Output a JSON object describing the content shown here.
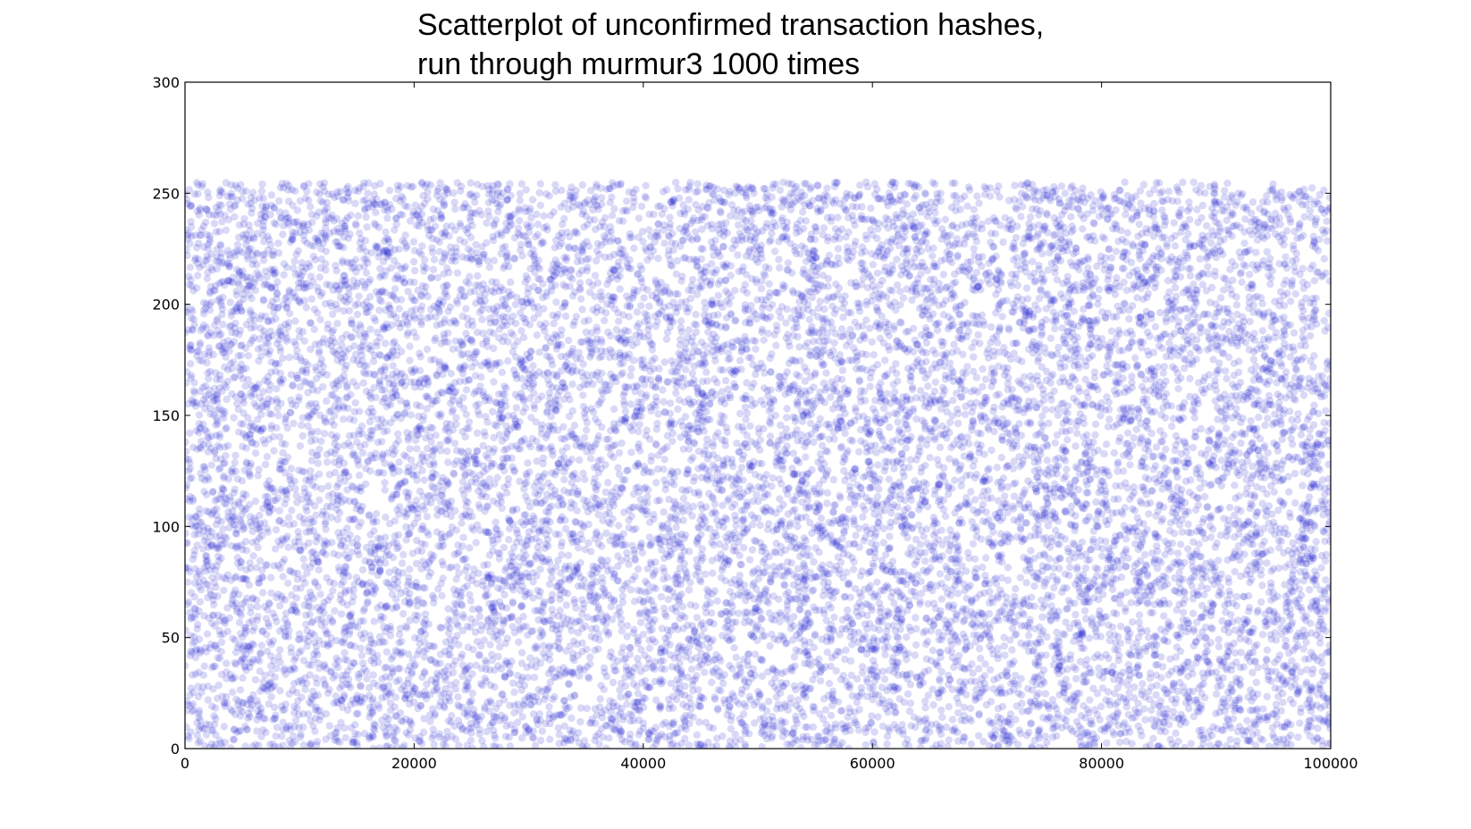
{
  "chart_data": {
    "type": "scatter",
    "title_lines": [
      "Scatterplot of unconfirmed transaction hashes,",
      "run through murmur3 1000 times"
    ],
    "xlabel": "",
    "ylabel": "",
    "xlim": [
      0,
      100000
    ],
    "ylim": [
      0,
      300
    ],
    "x_ticks": [
      0,
      20000,
      40000,
      60000,
      80000,
      100000
    ],
    "y_ticks": [
      0,
      50,
      100,
      150,
      200,
      250,
      300
    ],
    "grid": false,
    "legend": "none",
    "marker_color": "#0000cc",
    "marker_alpha": 0.15,
    "series": [
      {
        "description": "hash byte values (0-255) for 100000 samples; dense uniform band",
        "x_range": [
          0,
          100000
        ],
        "y_range": [
          0,
          255
        ],
        "point_count_displayed": 100000
      }
    ]
  }
}
